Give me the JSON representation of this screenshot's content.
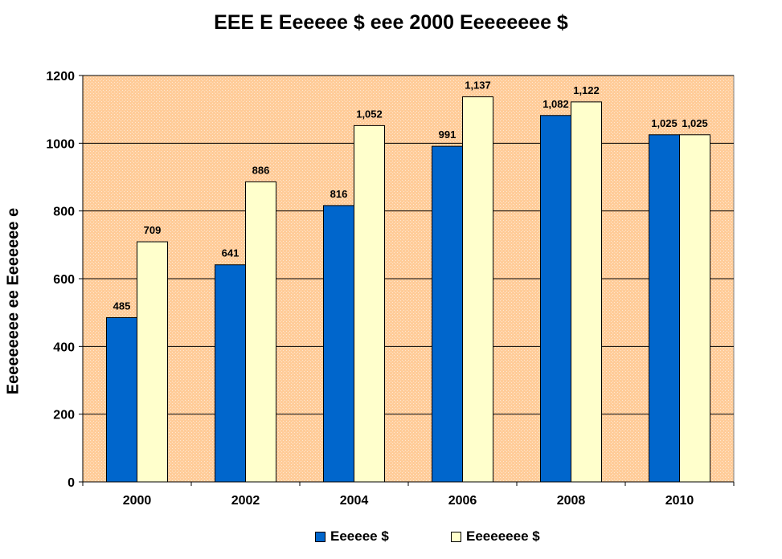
{
  "chart_data": {
    "type": "bar",
    "title": "EEE E Eeeeee $ eee 2000 Eeeeeeee $",
    "xlabel": "",
    "ylabel": "Eeeeeeeee ee Eeeeeee e",
    "categories": [
      "2000",
      "2002",
      "2004",
      "2006",
      "2008",
      "2010"
    ],
    "series": [
      {
        "name": "Eeeeee $",
        "color": "#0066CC",
        "values": [
          485,
          641,
          816,
          991,
          1082,
          1025
        ],
        "labels": [
          "485",
          "641",
          "816",
          "991",
          "1,082",
          "1,025"
        ]
      },
      {
        "name": "Eeeeeeee $",
        "color": "#FFFFCC",
        "values": [
          709,
          886,
          1052,
          1137,
          1122,
          1025
        ],
        "labels": [
          "709",
          "886",
          "1,052",
          "1,137",
          "1,122",
          "1,025"
        ]
      }
    ],
    "ylim": [
      0,
      1200
    ],
    "yticks": [
      0,
      200,
      400,
      600,
      800,
      1000,
      1200
    ],
    "grid": true,
    "legend_position": "bottom",
    "plot_background": "#FFCC99"
  }
}
